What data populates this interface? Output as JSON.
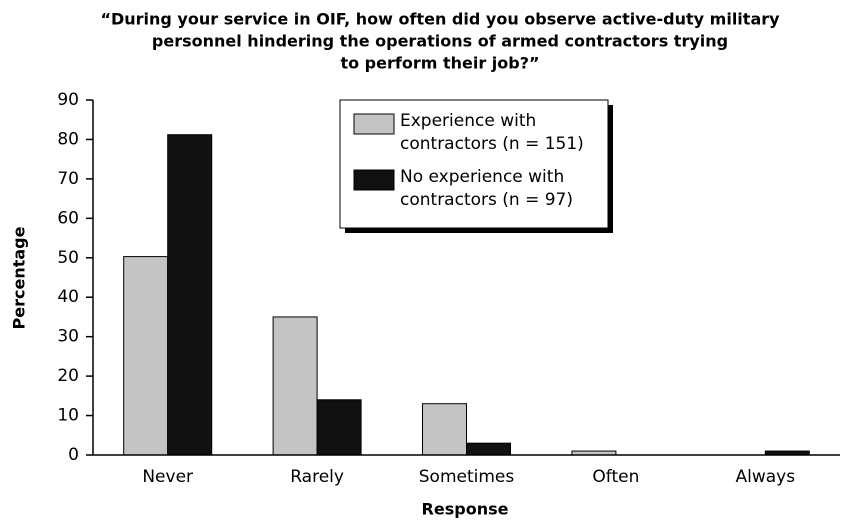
{
  "chart_data": {
    "type": "bar",
    "title": [
      "“During your service in OIF, how often did you observe active-duty military",
      "personnel hindering the operations of armed contractors trying",
      "to perform their job?”"
    ],
    "xlabel": "Response",
    "ylabel": "Percentage",
    "categories": [
      "Never",
      "Rarely",
      "Sometimes",
      "Often",
      "Always"
    ],
    "series": [
      {
        "name": "Experience with contractors (n = 151)",
        "color": "#c4c4c4",
        "values": [
          50.3,
          35,
          13,
          1,
          0
        ]
      },
      {
        "name": "No experience with contractors (n = 97)",
        "color": "#111111",
        "values": [
          81.2,
          14,
          3,
          0,
          1
        ]
      }
    ],
    "ylim": [
      0,
      90
    ],
    "yticks": [
      0,
      10,
      20,
      30,
      40,
      50,
      60,
      70,
      80,
      90
    ],
    "grid": false,
    "legend": "top"
  }
}
